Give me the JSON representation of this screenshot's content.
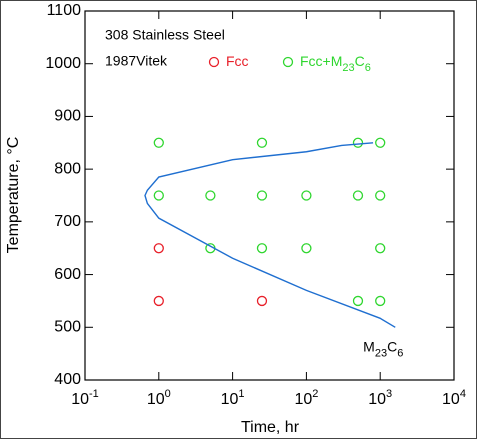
{
  "chart_data": {
    "type": "scatter",
    "title": "308 Stainless Steel",
    "subtitle": "1987Vitek",
    "x_label": "Time, hr",
    "y_label": "Temperature, °C",
    "x_log": true,
    "xlim": [
      0.1,
      10000
    ],
    "xticks": [
      {
        "value": 0.1,
        "label": "10-1"
      },
      {
        "value": 1,
        "label": "100"
      },
      {
        "value": 10,
        "label": "101"
      },
      {
        "value": 100,
        "label": "102"
      },
      {
        "value": 1000,
        "label": "103"
      },
      {
        "value": 10000,
        "label": "104"
      }
    ],
    "ylim": [
      400,
      1100
    ],
    "yticks": [
      400,
      500,
      600,
      700,
      800,
      900,
      1000,
      1100
    ],
    "series": [
      {
        "name": "Fcc",
        "color": "#e8202a",
        "type": "scatter",
        "x": [
          1,
          1,
          25
        ],
        "y": [
          650,
          550,
          550
        ]
      },
      {
        "name": "Fcc+M23C6",
        "color": "#2fd62f",
        "type": "scatter",
        "x": [
          1,
          25,
          500,
          1000,
          1,
          5,
          25,
          100,
          500,
          1000,
          5,
          25,
          100,
          1000,
          500,
          1000
        ],
        "y": [
          850,
          850,
          850,
          850,
          750,
          750,
          750,
          750,
          750,
          750,
          650,
          650,
          650,
          650,
          550,
          550
        ]
      },
      {
        "name": "M23C6",
        "color": "#1f6fd0",
        "type": "line",
        "x": [
          800,
          300,
          100,
          10,
          1,
          0.7,
          0.65,
          0.7,
          1,
          10,
          100,
          1000,
          1600
        ],
        "y": [
          850,
          845,
          833,
          818,
          785,
          760,
          750,
          735,
          707,
          631,
          570,
          517,
          500
        ]
      }
    ]
  }
}
